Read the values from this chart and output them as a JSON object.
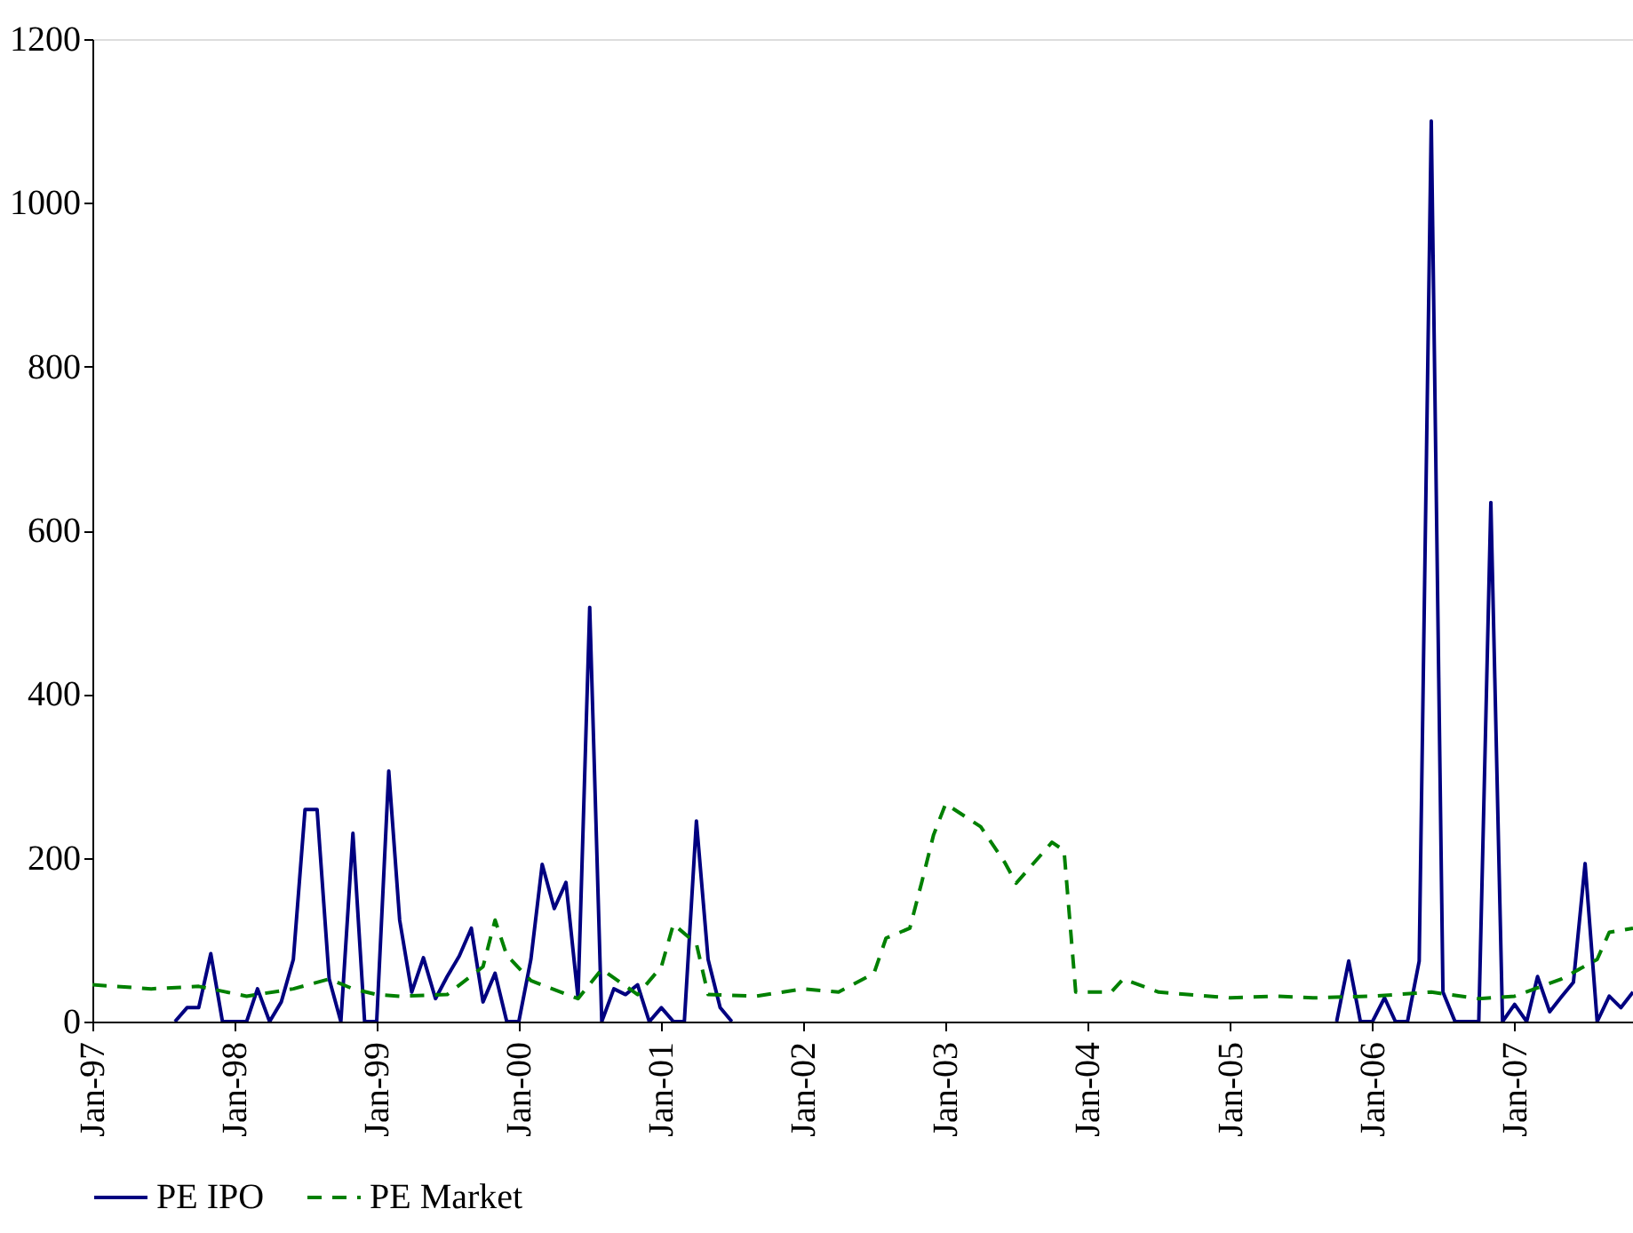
{
  "chart_data": {
    "type": "line",
    "xlim": [
      "1997-01",
      "2007-11"
    ],
    "xticks": [
      {
        "value": "1997-01",
        "label": "Jan-97"
      },
      {
        "value": "1998-01",
        "label": "Jan-98"
      },
      {
        "value": "1999-01",
        "label": "Jan-99"
      },
      {
        "value": "2000-01",
        "label": "Jan-00"
      },
      {
        "value": "2001-01",
        "label": "Jan-01"
      },
      {
        "value": "2002-01",
        "label": "Jan-02"
      },
      {
        "value": "2003-01",
        "label": "Jan-03"
      },
      {
        "value": "2004-01",
        "label": "Jan-04"
      },
      {
        "value": "2005-01",
        "label": "Jan-05"
      },
      {
        "value": "2006-01",
        "label": "Jan-06"
      },
      {
        "value": "2007-01",
        "label": "Jan-07"
      }
    ],
    "ylim": [
      0,
      1200
    ],
    "yticks": [
      0,
      200,
      400,
      600,
      800,
      1000,
      1200
    ],
    "grid": false,
    "legend": "bottom",
    "marker": "none",
    "series": [
      {
        "name": "PE IPO",
        "color": "#000080",
        "line_style": "solid",
        "x": [
          "1997-08",
          "1997-09",
          "1997-10",
          "1997-11",
          "1997-12",
          "1998-01",
          "1998-02",
          "1998-03",
          "1998-04",
          "1998-05",
          "1998-06",
          "1998-07",
          "1998-08",
          "1998-09",
          "1998-10",
          "1998-11",
          "1998-12",
          "1999-01",
          "1999-02",
          "1999-03",
          "1999-04",
          "1999-05",
          "1999-06",
          "1999-07",
          "1999-08",
          "1999-09",
          "1999-10",
          "1999-11",
          "1999-12",
          "2000-01",
          "2000-02",
          "2000-03",
          "2000-04",
          "2000-05",
          "2000-06",
          "2000-07",
          "2000-08",
          "2000-09",
          "2000-10",
          "2000-11",
          "2000-12",
          "2001-01",
          "2001-02",
          "2001-03",
          "2001-04",
          "2001-05",
          "2001-06",
          "2001-07",
          "2003-06",
          "2005-10",
          "2005-11",
          "2005-12",
          "2006-01",
          "2006-02",
          "2006-03",
          "2006-04",
          "2006-05",
          "2006-06",
          "2006-07",
          "2006-08",
          "2006-09",
          "2006-10",
          "2006-11",
          "2006-12",
          "2007-01",
          "2007-02",
          "2007-03",
          "2007-04",
          "2007-05",
          "2007-06",
          "2007-07",
          "2007-08",
          "2007-09",
          "2007-10",
          "2007-11"
        ],
        "values": [
          0,
          17,
          17,
          83,
          0,
          0,
          0,
          40,
          0,
          24,
          76,
          259,
          259,
          52,
          0,
          230,
          0,
          0,
          306,
          124,
          36,
          78,
          28,
          55,
          80,
          114,
          24,
          59,
          0,
          0,
          76,
          192,
          138,
          170,
          29,
          506,
          0,
          40,
          33,
          45,
          0,
          17,
          0,
          0,
          245,
          76,
          17,
          0,
          null,
          0,
          74,
          0,
          0,
          29,
          0,
          0,
          74,
          1100,
          36,
          0,
          0,
          0,
          634,
          0,
          21,
          0,
          55,
          12,
          30,
          48,
          193,
          0,
          31,
          17,
          36
        ]
      },
      {
        "name": "PE Market",
        "color": "#008000",
        "line_style": "dashed",
        "x": [
          "1997-01",
          "1997-06",
          "1997-10",
          "1998-02",
          "1998-06",
          "1998-09",
          "1998-11",
          "1999-01",
          "1999-03",
          "1999-07",
          "1999-10",
          "1999-11",
          "1999-12",
          "2000-02",
          "2000-06",
          "2000-08",
          "2000-11",
          "2001-01",
          "2001-02",
          "2001-04",
          "2001-05",
          "2001-09",
          "2002-01",
          "2002-04",
          "2002-07",
          "2002-08",
          "2002-10",
          "2002-11",
          "2002-12",
          "2003-01",
          "2003-04",
          "2003-06",
          "2003-07",
          "2003-10",
          "2003-11",
          "2003-12",
          "2004-03",
          "2004-04",
          "2004-07",
          "2005-01",
          "2005-05",
          "2005-08",
          "2006-01",
          "2006-06",
          "2006-10",
          "2007-01",
          "2007-05",
          "2007-08",
          "2007-09",
          "2007-11"
        ],
        "values": [
          45,
          40,
          43,
          31,
          40,
          52,
          40,
          33,
          31,
          33,
          67,
          124,
          81,
          50,
          28,
          64,
          33,
          67,
          119,
          95,
          33,
          31,
          40,
          36,
          59,
          102,
          114,
          171,
          228,
          266,
          238,
          195,
          169,
          219,
          209,
          36,
          36,
          52,
          36,
          29,
          31,
          29,
          31,
          36,
          28,
          31,
          52,
          76,
          109,
          114
        ]
      }
    ]
  }
}
